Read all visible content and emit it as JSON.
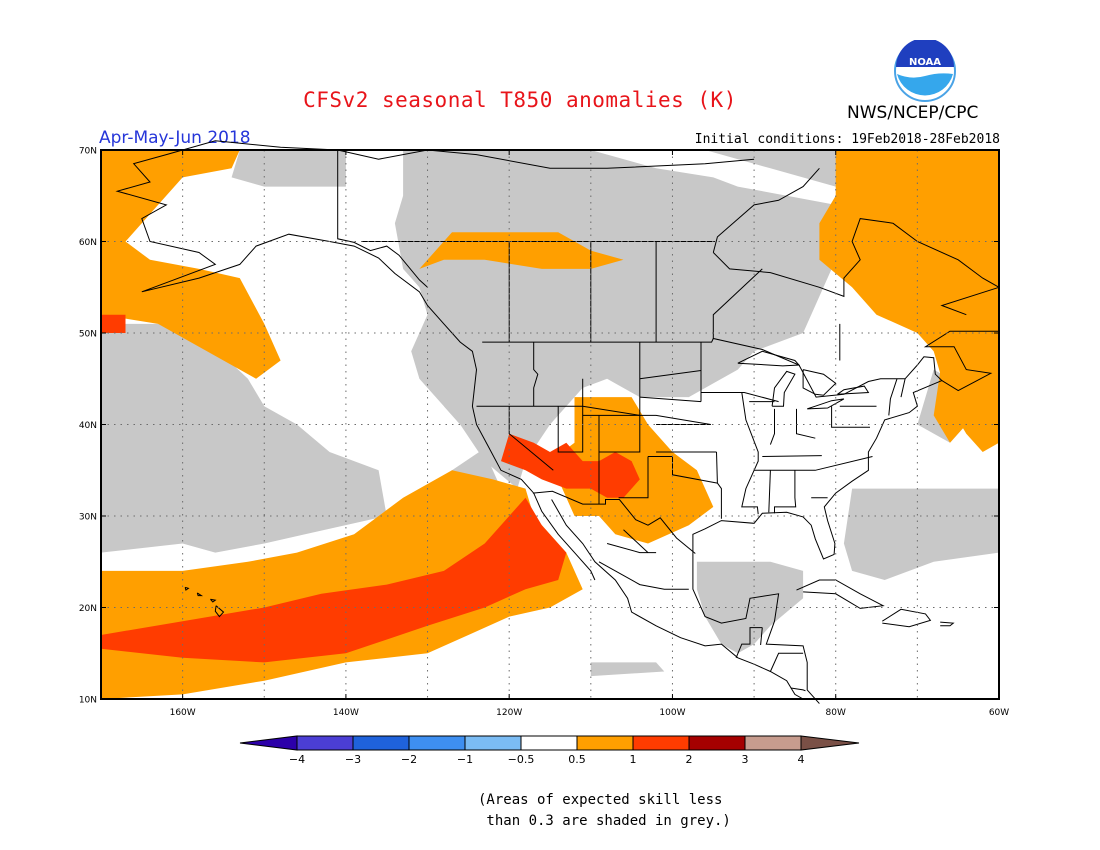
{
  "title": "CFSv2 seasonal T850 anomalies (K)",
  "agency": "NWS/NCEP/CPC",
  "logo_text": "NOAA",
  "season": "Apr-May-Jun 2018",
  "initial_conditions": "Initial conditions: 19Feb2018-28Feb2018",
  "note": "(Areas of expected skill less\n than 0.3 are shaded in grey.)",
  "map": {
    "lon_range": [
      -170,
      -60
    ],
    "lat_range": [
      10,
      70
    ],
    "lat_ticks": [
      {
        "v": 70,
        "label": "70N"
      },
      {
        "v": 60,
        "label": "60N"
      },
      {
        "v": 50,
        "label": "50N"
      },
      {
        "v": 40,
        "label": "40N"
      },
      {
        "v": 30,
        "label": "30N"
      },
      {
        "v": 20,
        "label": "20N"
      },
      {
        "v": 10,
        "label": "10N"
      }
    ],
    "lon_ticks": [
      {
        "v": -160,
        "label": "160W"
      },
      {
        "v": -140,
        "label": "140W"
      },
      {
        "v": -120,
        "label": "120W"
      },
      {
        "v": -100,
        "label": "100W"
      },
      {
        "v": -80,
        "label": "80W"
      },
      {
        "v": -60,
        "label": "60W"
      }
    ],
    "colors": {
      "grey": "#c8c8c8",
      "orange": "#ff9f00",
      "red": "#ff3c00"
    }
  },
  "colorbar": {
    "colors": [
      "#2c00a9",
      "#4b3ed4",
      "#1f62db",
      "#3e8ff1",
      "#7bbcf4",
      "#ffffff",
      "#ff9f00",
      "#ff3c00",
      "#a50000",
      "#c79c8e",
      "#7a5046"
    ],
    "labels": [
      "−4",
      "−3",
      "−2",
      "−1",
      "−0.5",
      "0.5",
      "1",
      "2",
      "3",
      "4"
    ]
  }
}
